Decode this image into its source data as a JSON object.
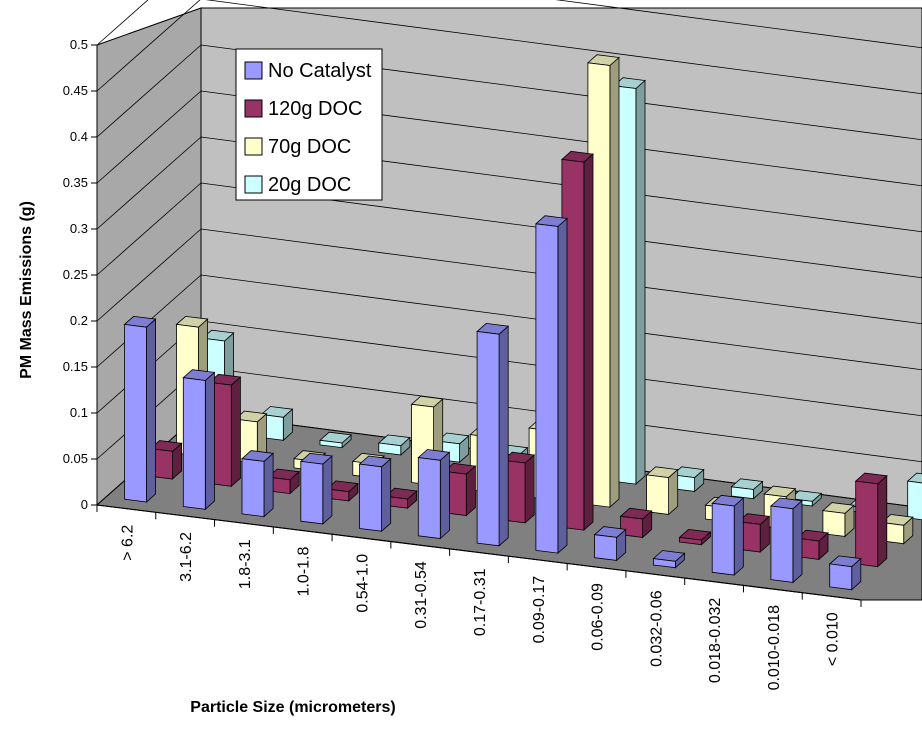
{
  "chart_data": {
    "type": "bar",
    "variant": "3d-clustered-column",
    "title": "",
    "xlabel": "Particle Size (micrometers)",
    "ylabel": "PM Mass Emissions (g)",
    "ylim": [
      0,
      0.5
    ],
    "yticks": [
      "0",
      "0.05",
      "0.1",
      "0.15",
      "0.2",
      "0.25",
      "0.3",
      "0.35",
      "0.4",
      "0.45",
      "0.5"
    ],
    "grid": true,
    "legend_position": "top-left",
    "categories": [
      "> 6.2",
      "3.1-6.2",
      "1.8-3.1",
      "1.0-1.8",
      "0.54-1.0",
      "0.31-0.54",
      "0.17-0.31",
      "0.09-0.17",
      "0.06-0.09",
      "0.032-0.06",
      "0.018-0.032",
      "0.010-0.018",
      "< 0.010"
    ],
    "series": [
      {
        "name": "No Catalyst",
        "color": "#9999ff",
        "values": [
          0.19,
          0.14,
          0.06,
          0.065,
          0.07,
          0.085,
          0.23,
          0.355,
          0.025,
          0.007,
          0.075,
          0.08,
          0.025
        ]
      },
      {
        "name": "120g DOC",
        "color": "#993366",
        "values": [
          0.03,
          0.11,
          0.015,
          0.01,
          0.01,
          0.045,
          0.065,
          0.4,
          0.02,
          0.005,
          0.03,
          0.02,
          0.09
        ]
      },
      {
        "name": "70g DOC",
        "color": "#ffffcc",
        "values": [
          0.14,
          0.045,
          0.01,
          0.015,
          0.085,
          0.06,
          0.075,
          0.48,
          0.04,
          0.015,
          0.035,
          0.025,
          0.02
        ]
      },
      {
        "name": "20g DOC",
        "color": "#ccffff",
        "values": [
          0.1,
          0.025,
          0.005,
          0.01,
          0.02,
          0.015,
          0.025,
          0.43,
          0.015,
          0.01,
          0.005,
          0.005,
          0.04
        ]
      }
    ]
  }
}
